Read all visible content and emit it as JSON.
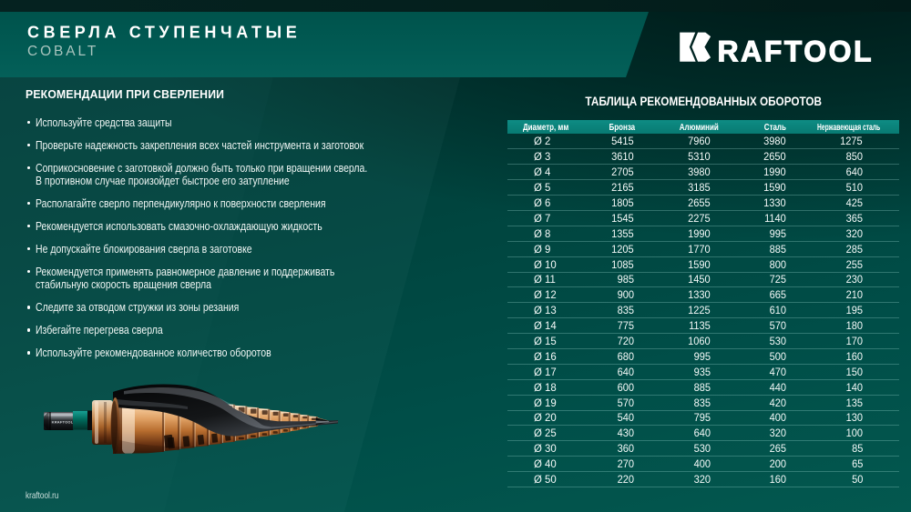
{
  "header": {
    "title": "СВЕРЛА СТУПЕНЧАТЫЕ",
    "subtitle": "COBALT",
    "brand": "KRAFTOOL",
    "brand_wordmark_rest": "RAFTOOL"
  },
  "recommendations": {
    "heading": "РЕКОМЕНДАЦИИ ПРИ СВЕРЛЕНИИ",
    "items": [
      "Используйте средства защиты",
      "Проверьте надежность закрепления всех частей инструмента и заготовок",
      "Соприкосновение с заготовкой должно быть только при вращении сверла.\nВ противном случае произойдет быстрое его затупление",
      "Располагайте сверло перпендикулярно к поверхности сверления",
      "Рекомендуется использовать смазочно-охлаждающую жидкость",
      "Не допускайте блокирования сверла в заготовке",
      "Рекомендуется применять равномерное давление и поддерживать\nстабильную скорость вращения сверла",
      "Следите за отводом стружки из зоны резания",
      "Избегайте перегрева сверла",
      "Используйте рекомендованное количество оборотов"
    ]
  },
  "speed_table": {
    "title": "ТАБЛИЦА РЕКОМЕНДОВАННЫХ ОБОРОТОВ",
    "columns": [
      "Диаметр, мм",
      "Бронза",
      "Алюминий",
      "Сталь",
      "Нержавеющая сталь"
    ],
    "rows": [
      [
        "Ø 2",
        "5415",
        "7960",
        "3980",
        "1275"
      ],
      [
        "Ø 3",
        "3610",
        "5310",
        "2650",
        "850"
      ],
      [
        "Ø 4",
        "2705",
        "3980",
        "1990",
        "640"
      ],
      [
        "Ø 5",
        "2165",
        "3185",
        "1590",
        "510"
      ],
      [
        "Ø 6",
        "1805",
        "2655",
        "1330",
        "425"
      ],
      [
        "Ø 7",
        "1545",
        "2275",
        "1140",
        "365"
      ],
      [
        "Ø 8",
        "1355",
        "1990",
        "995",
        "320"
      ],
      [
        "Ø 9",
        "1205",
        "1770",
        "885",
        "285"
      ],
      [
        "Ø 10",
        "1085",
        "1590",
        "800",
        "255"
      ],
      [
        "Ø 11",
        "985",
        "1450",
        "725",
        "230"
      ],
      [
        "Ø 12",
        "900",
        "1330",
        "665",
        "210"
      ],
      [
        "Ø 13",
        "835",
        "1225",
        "610",
        "195"
      ],
      [
        "Ø 14",
        "775",
        "1135",
        "570",
        "180"
      ],
      [
        "Ø 15",
        "720",
        "1060",
        "530",
        "170"
      ],
      [
        "Ø 16",
        "680",
        "995",
        "500",
        "160"
      ],
      [
        "Ø 17",
        "640",
        "935",
        "470",
        "150"
      ],
      [
        "Ø 18",
        "600",
        "885",
        "440",
        "140"
      ],
      [
        "Ø 19",
        "570",
        "835",
        "420",
        "135"
      ],
      [
        "Ø 20",
        "540",
        "795",
        "400",
        "130"
      ],
      [
        "Ø 25",
        "430",
        "640",
        "320",
        "100"
      ],
      [
        "Ø 30",
        "360",
        "530",
        "265",
        "85"
      ],
      [
        "Ø 40",
        "270",
        "400",
        "200",
        "65"
      ],
      [
        "Ø 50",
        "220",
        "320",
        "160",
        "50"
      ]
    ]
  },
  "drill": {
    "shank_label": "KRAFTOOL"
  },
  "footer": {
    "site": "kraftool.ru"
  },
  "colors": {
    "top_bar": "#0a1412",
    "header_band": "#176054",
    "background": "#104a44",
    "table_header": "#1e7a6d",
    "subtitle_text": "#a9c4be",
    "copper": "#d99a63",
    "teal_ring": "#12796b"
  }
}
